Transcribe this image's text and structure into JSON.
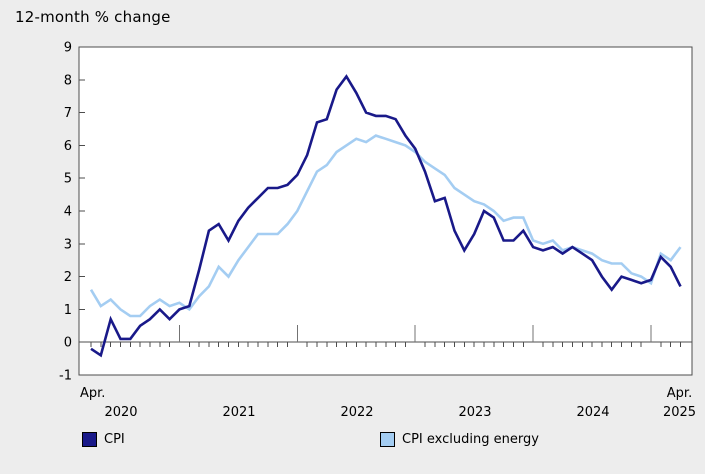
{
  "title": "12-month % change",
  "colors": {
    "page_background": "#ededed",
    "plot_background": "#ffffff",
    "plot_border": "#4d4d4d",
    "axis": "#4d4d4d",
    "major_tick": "#737373",
    "cpi_line": "#191989",
    "cpi_excluding_energy_line": "#a4cdf2"
  },
  "legend": [
    {
      "label": "CPI",
      "color": "#191989"
    },
    {
      "label": "CPI excluding energy",
      "color": "#a4cdf2"
    }
  ],
  "chart_data": {
    "type": "line",
    "title": "12-month % change",
    "x_start": "Apr. 2020",
    "x_end": "Apr. 2025",
    "frequency": "monthly",
    "grid": false,
    "legend_position": "bottom",
    "ylim": [
      -1,
      9
    ],
    "yticks": [
      9,
      8,
      7,
      6,
      5,
      4,
      3,
      2,
      1,
      0,
      -1
    ],
    "x_axis": {
      "start_tick_label": "Apr.",
      "end_tick_label": "Apr.",
      "year_labels": [
        "2020",
        "2021",
        "2022",
        "2023",
        "2024",
        "2025"
      ],
      "major_ticks_at": "January"
    },
    "series": [
      {
        "name": "CPI",
        "color": "#191989",
        "values": [
          -0.2,
          -0.4,
          0.7,
          0.1,
          0.1,
          0.5,
          0.7,
          1.0,
          0.7,
          1.0,
          1.1,
          2.2,
          3.4,
          3.6,
          3.1,
          3.7,
          4.1,
          4.4,
          4.7,
          4.7,
          4.8,
          5.1,
          5.7,
          6.7,
          6.8,
          7.7,
          8.1,
          7.6,
          7.0,
          6.9,
          6.9,
          6.8,
          6.3,
          5.9,
          5.2,
          4.3,
          4.4,
          3.4,
          2.8,
          3.3,
          4.0,
          3.8,
          3.1,
          3.1,
          3.4,
          2.9,
          2.8,
          2.9,
          2.7,
          2.9,
          2.7,
          2.5,
          2.0,
          1.6,
          2.0,
          1.9,
          1.8,
          1.9,
          2.6,
          2.3,
          1.7
        ]
      },
      {
        "name": "CPI excluding energy",
        "color": "#a4cdf2",
        "values": [
          1.6,
          1.1,
          1.3,
          1.0,
          0.8,
          0.8,
          1.1,
          1.3,
          1.1,
          1.2,
          1.0,
          1.4,
          1.7,
          2.3,
          2.0,
          2.5,
          2.9,
          3.3,
          3.3,
          3.3,
          3.6,
          4.0,
          4.6,
          5.2,
          5.4,
          5.8,
          6.0,
          6.2,
          6.1,
          6.3,
          6.2,
          6.1,
          6.0,
          5.8,
          5.5,
          5.3,
          5.1,
          4.7,
          4.5,
          4.3,
          4.2,
          4.0,
          3.7,
          3.8,
          3.8,
          3.1,
          3.0,
          3.1,
          2.8,
          2.9,
          2.8,
          2.7,
          2.5,
          2.4,
          2.4,
          2.1,
          2.0,
          1.8,
          2.7,
          2.5,
          2.9
        ]
      }
    ]
  }
}
